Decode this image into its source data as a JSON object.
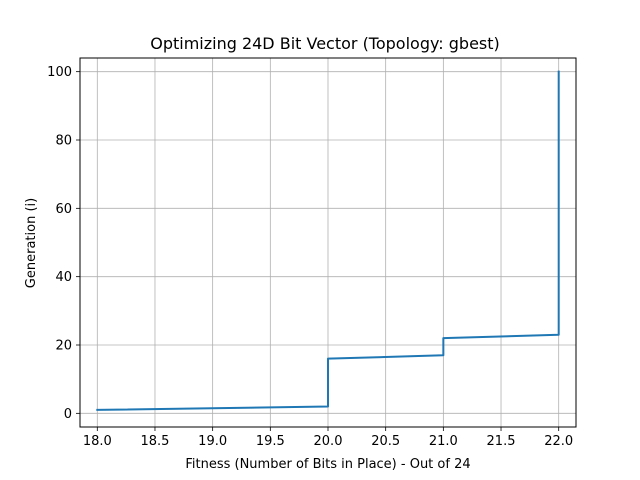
{
  "chart_data": {
    "type": "line",
    "title": "Optimizing 24D Bit Vector (Topology: gbest)",
    "xlabel": "Fitness (Number of Bits in Place) - Out of 24",
    "ylabel": "Generation (i)",
    "xlim": [
      17.85,
      22.15
    ],
    "ylim": [
      -4,
      104
    ],
    "xticks": [
      18.0,
      18.5,
      19.0,
      19.5,
      20.0,
      20.5,
      21.0,
      21.5,
      22.0
    ],
    "xtick_labels": [
      "18.0",
      "18.5",
      "19.0",
      "19.5",
      "20.0",
      "20.5",
      "21.0",
      "21.5",
      "22.0"
    ],
    "yticks": [
      0,
      20,
      40,
      60,
      80,
      100
    ],
    "ytick_labels": [
      "0",
      "20",
      "40",
      "60",
      "80",
      "100"
    ],
    "grid": true,
    "series": [
      {
        "color": "#1f77b4",
        "x": [
          18,
          20,
          20,
          21,
          21,
          22,
          22
        ],
        "y": [
          1,
          2,
          16,
          17,
          22,
          23,
          100
        ]
      }
    ]
  }
}
